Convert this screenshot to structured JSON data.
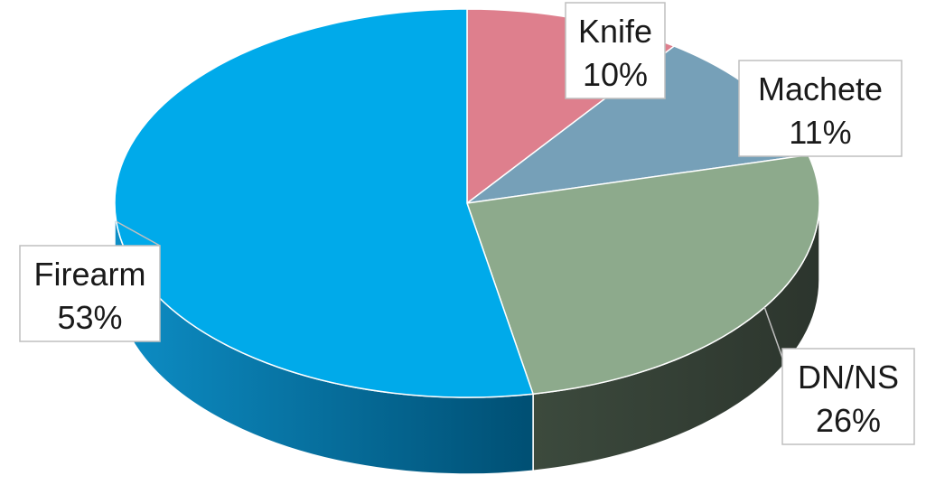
{
  "chart_data": {
    "type": "pie",
    "title": "",
    "categories": [
      "Knife",
      "Machete",
      "DN/NS",
      "Firearm"
    ],
    "values": [
      10,
      11,
      26,
      53
    ],
    "value_labels": [
      "10%",
      "11%",
      "26%",
      "53%"
    ],
    "colors": [
      "#de7f8d",
      "#76a0b8",
      "#8daa8c",
      "#00aaea"
    ],
    "side_colors": [
      "#a85a66",
      "#4f7589",
      "#3b4a3d",
      "#0087bc"
    ],
    "style": "3d-tilted",
    "legend": "none",
    "data_labels": "callouts-with-category-and-percent"
  }
}
